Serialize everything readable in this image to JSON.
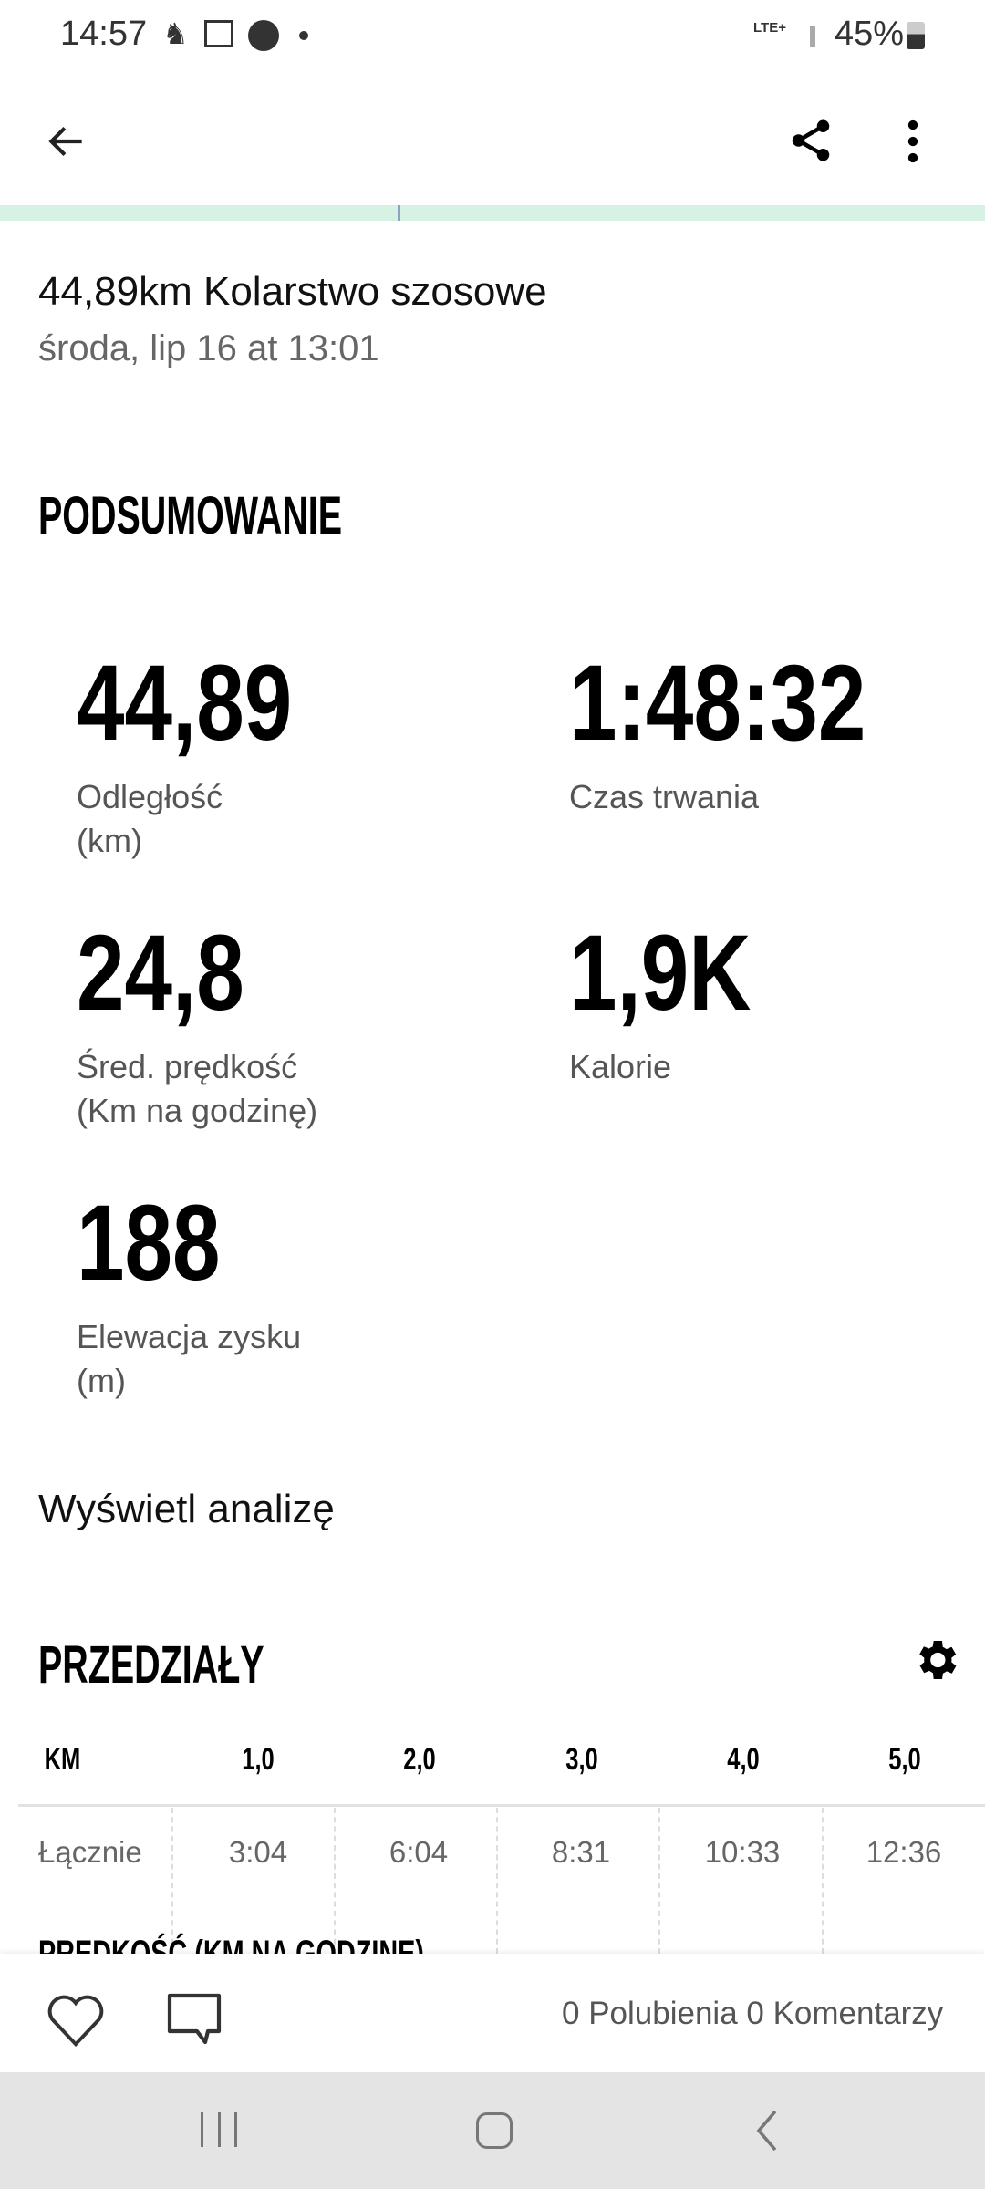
{
  "status_bar": {
    "time": "14:57",
    "network": "LTE+",
    "battery": "45%",
    "icons": [
      "person-icon",
      "calendar-icon",
      "messenger-icon",
      "dot-icon"
    ]
  },
  "toolbar": {
    "back": "back-arrow-icon",
    "share": "share-icon",
    "more": "more-vert-icon"
  },
  "activity": {
    "title": "44,89km Kolarstwo szosowe",
    "subtitle": "środa, lip 16 at 13:01"
  },
  "summary": {
    "heading": "PODSUMOWANIE",
    "stats": [
      {
        "value": "44,89",
        "label": "Odległość",
        "unit": "(km)"
      },
      {
        "value": "1:48:32",
        "label": "Czas trwania",
        "unit": ""
      },
      {
        "value": "24,8",
        "label": "Śred. prędkość",
        "unit": "(Km na godzinę)"
      },
      {
        "value": "1,9K",
        "label": "Kalorie",
        "unit": ""
      },
      {
        "value": "188",
        "label": "Elewacja zysku",
        "unit": "(m)"
      }
    ]
  },
  "analysis_link": "Wyświetl analizę",
  "intervals": {
    "heading": "PRZEDZIAŁY",
    "columns": [
      "KM",
      "1,0",
      "2,0",
      "3,0",
      "4,0",
      "5,0"
    ],
    "row": {
      "label": "Łącznie",
      "values": [
        "3:04",
        "6:04",
        "8:31",
        "10:33",
        "12:36"
      ]
    },
    "next_heading": "PRĘDKOŚĆ (KM NA GODZINĘ)"
  },
  "footer": {
    "counts": "0 Polubienia 0 Komentarzy"
  }
}
